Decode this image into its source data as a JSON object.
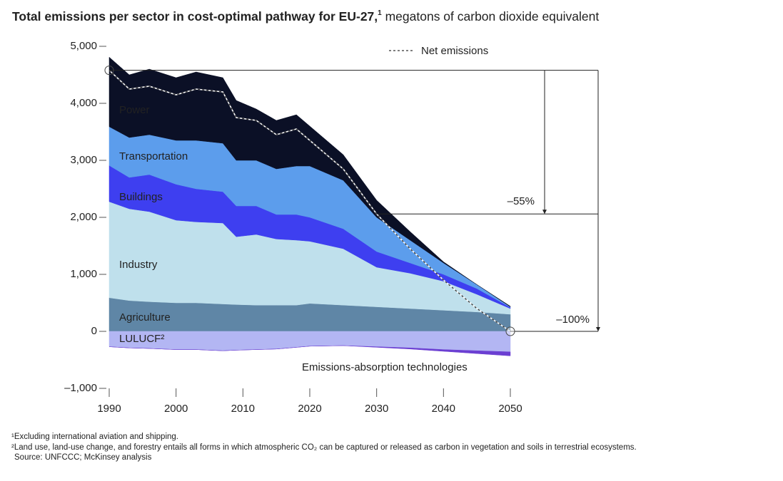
{
  "chart_data": {
    "type": "stacked-area",
    "title": "Total emissions per sector in cost-optimal pathway for EU-27,",
    "title_note": "1",
    "subtitle": "megatons of carbon dioxide equivalent",
    "x": [
      1990,
      1993,
      1996,
      2000,
      2003,
      2007,
      2009,
      2012,
      2015,
      2018,
      2020,
      2025,
      2030,
      2035,
      2040,
      2045,
      2050
    ],
    "series": [
      {
        "name": "Agriculture",
        "color": "#5f86a6",
        "values": [
          590,
          540,
          520,
          500,
          500,
          480,
          470,
          460,
          460,
          460,
          490,
          460,
          430,
          400,
          370,
          340,
          300
        ]
      },
      {
        "name": "Industry",
        "color": "#bfe0ec",
        "values": [
          1685,
          1610,
          1580,
          1450,
          1420,
          1420,
          1190,
          1240,
          1160,
          1140,
          1090,
          990,
          695,
          620,
          510,
          310,
          100
        ]
      },
      {
        "name": "Buildings",
        "color": "#3e3ff0",
        "values": [
          635,
          550,
          650,
          630,
          580,
          550,
          540,
          500,
          430,
          450,
          420,
          350,
          275,
          180,
          120,
          100,
          20
        ]
      },
      {
        "name": "Transportation",
        "color": "#5c9dec",
        "values": [
          680,
          700,
          700,
          770,
          850,
          850,
          800,
          800,
          800,
          850,
          900,
          850,
          600,
          400,
          200,
          70,
          10
        ]
      },
      {
        "name": "Power",
        "color": "#0b1026",
        "values": [
          1220,
          1100,
          1150,
          1100,
          1200,
          1150,
          1050,
          900,
          850,
          900,
          700,
          450,
          300,
          150,
          20,
          0,
          10
        ]
      },
      {
        "name": "LULUCF²",
        "color": "#b3b6f3",
        "values": [
          -270,
          -290,
          -300,
          -320,
          -320,
          -340,
          -330,
          -320,
          -310,
          -280,
          -260,
          -250,
          -270,
          -290,
          -320,
          -340,
          -360
        ]
      },
      {
        "name": "Emissions-absorption technologies",
        "color": "#6b3fd2",
        "values": [
          0,
          0,
          0,
          0,
          0,
          0,
          0,
          0,
          0,
          0,
          0,
          0,
          -10,
          -20,
          -30,
          -50,
          -70
        ]
      }
    ],
    "net": {
      "name": "Net emissions",
      "color": "#333333",
      "values": [
        4580,
        4250,
        4300,
        4150,
        4250,
        4200,
        3750,
        3700,
        3450,
        3550,
        3350,
        2850,
        2060,
        1450,
        900,
        400,
        0
      ]
    },
    "annotations": [
      "–55%",
      "–100%"
    ],
    "xlim": [
      1990,
      2050
    ],
    "ylim": [
      -1000,
      5000
    ],
    "xticks": [
      1990,
      2000,
      2010,
      2020,
      2030,
      2040,
      2050
    ],
    "yticks": [
      {
        "value": -1000,
        "label": "–1,000"
      },
      0,
      {
        "value": 1000,
        "label": "1,000"
      },
      {
        "value": 2000,
        "label": "2,000"
      },
      {
        "value": 3000,
        "label": "3,000"
      },
      {
        "value": 4000,
        "label": "4,000"
      },
      {
        "value": 5000,
        "label": "5,000"
      }
    ],
    "legend": "top",
    "grid": false
  },
  "footnotes": [
    "¹Excluding international aviation and shipping.",
    "²Land use, land-use change, and forestry entails all forms in which atmospheric CO₂ can be captured or released as carbon in vegetation and soils in terrestrial ecosystems.",
    "Source: UNFCCC; McKinsey analysis"
  ]
}
